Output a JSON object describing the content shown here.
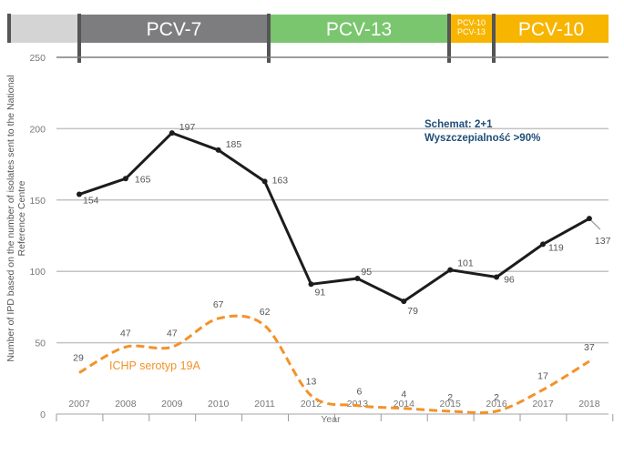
{
  "vaccine_bar": [
    {
      "label": "",
      "lines": [
        ""
      ],
      "color": "#d4d4d4"
    },
    {
      "label": "PCV-7",
      "lines": [
        "PCV-7"
      ],
      "color": "#7d7d7f"
    },
    {
      "label": "PCV-13",
      "lines": [
        "PCV-13"
      ],
      "color": "#7ac66e"
    },
    {
      "label": "PCV-10 PCV-13",
      "lines": [
        "PCV-10",
        "PCV-13"
      ],
      "color": "#f7b500"
    },
    {
      "label": "PCV-10",
      "lines": [
        "PCV-10"
      ],
      "color": "#f7b500"
    }
  ],
  "chart_data": {
    "type": "line",
    "x": [
      "2007",
      "2008",
      "2009",
      "2010",
      "2011",
      "2012",
      "2013",
      "2014",
      "2015",
      "2016",
      "2017",
      "2018"
    ],
    "series": [
      {
        "values": [
          154,
          165,
          197,
          185,
          163,
          91,
          95,
          79,
          101,
          96,
          119,
          137
        ],
        "color": "#1c1c1c",
        "style": "solid"
      },
      {
        "name": "ICHP serotyp 19A",
        "values": [
          29,
          47,
          47,
          67,
          62,
          13,
          6,
          4,
          2,
          2,
          17,
          37
        ],
        "color": "#f39229",
        "style": "dashed"
      }
    ],
    "ylabel": "Number of IPD  based on the number of isolates sent to the National Reference Centre",
    "xlabel": "Year",
    "ylim": [
      0,
      250
    ],
    "yticks": [
      0,
      50,
      100,
      150,
      200,
      250
    ],
    "grid": true,
    "annotation": {
      "lines": [
        "Schemat: 2+1",
        "Wyszczepialność >90%"
      ],
      "color": "#1f4e79"
    }
  }
}
